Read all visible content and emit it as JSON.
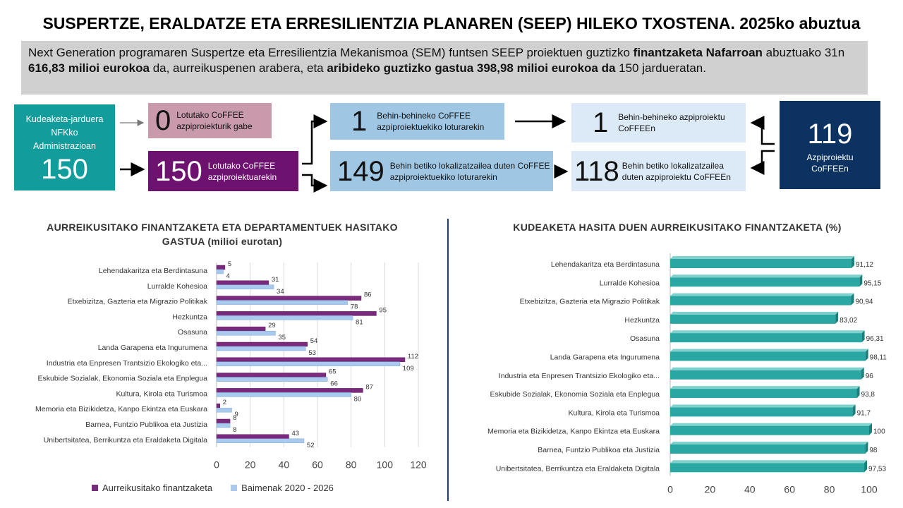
{
  "header": {
    "title": "SUSPERTZE, ERALDATZE ETA ERRESILIENTZIA PLANAREN (SEEP) HILEKO TXOSTENA. 2025ko abuztua"
  },
  "summary": {
    "p1": "Next Generation programaren Suspertze eta Erresilientzia Mekanismoa (SEM) funtsen SEEP proiektuen guztizko ",
    "b1": "finantzaketa Nafarroan",
    "p2": " abuztuako 31n ",
    "b2": "616,83 milioi eurokoa",
    "p3": " da, aurreikuspenen arabera, eta ",
    "b3": "aribideko guztizko gastua 398,98 milioi eurokoa da",
    "p4": " 150 jardueratan."
  },
  "flow": {
    "admin": {
      "label": "Kudeaketa-jarduera NFKko Administrazioan",
      "value": "150"
    },
    "unlinked": {
      "value": "0",
      "label": "Lotutako CoFFEE azpiproiekturik gabe"
    },
    "linked": {
      "value": "150",
      "label": "Lotutako CoFFEE azpiproiektuarekin"
    },
    "temp_link": {
      "value": "1",
      "label": "Behin-behineko CoFFEE azpiproiektuekiko loturarekin"
    },
    "final_link": {
      "value": "149",
      "label": "Behin betiko lokalizatzailea duten CoFFEE azpiproiektuekiko loturarekin"
    },
    "temp_sub": {
      "value": "1",
      "label": "Behin-behineko azpiproiektu CoFFEEn"
    },
    "final_sub": {
      "value": "118",
      "label": "Behin betiko lokalizatzailea duten azpiproiektu CoFFEEn"
    },
    "total": {
      "value": "119",
      "label": "Azpiproiektu CoFFEEn"
    }
  },
  "colors": {
    "teal": "#139c9c",
    "mauve": "#c89aab",
    "purple": "#6e1270",
    "light_blue": "#9fc7e4",
    "pale_blue": "#dce9f6",
    "navy": "#0b3260",
    "series_financing": "#7a2a7c",
    "series_permits": "#a9c9ee",
    "pct_bar": "#2aa7a2"
  },
  "chart_data": [
    {
      "type": "bar",
      "orientation": "horizontal",
      "title": "AURREIKUSITAKO FINANTZAKETA ETA DEPARTAMENTUEK HASITAKO GASTUA (milioi eurotan)",
      "categories": [
        "Lehendakaritza eta Berdintasuna",
        "Lurralde Kohesioa",
        "Etxebizitza, Gazteria eta Migrazio Politikak",
        "Hezkuntza",
        "Osasuna",
        "Landa Garapena eta Ingurumena",
        "Industria eta Enpresen Trantsizio Ekologiko eta...",
        "Eskubide Sozialak, Ekonomia Soziala eta Enplegua",
        "Kultura, Kirola eta Turismoa",
        "Memoria eta Bizikidetza, Kanpo Ekintza eta Euskara",
        "Barnea, Funtzio Publikoa eta Justizia",
        "Unibertsitatea, Berrikuntza eta Eraldaketa Digitala"
      ],
      "series": [
        {
          "name": "Aurreikusitako finantzaketa",
          "values": [
            5,
            31,
            86,
            95,
            29,
            54,
            112,
            65,
            87,
            2,
            8,
            43
          ]
        },
        {
          "name": "Baimenak 2020 - 2026",
          "values": [
            4,
            34,
            78,
            81,
            35,
            53,
            109,
            66,
            80,
            9,
            8,
            52
          ]
        }
      ],
      "xlim": [
        0,
        120
      ],
      "ticks": [
        "0",
        "20",
        "40",
        "60",
        "80",
        "100",
        "120"
      ],
      "grid": true,
      "legend": "bottom"
    },
    {
      "type": "bar",
      "orientation": "horizontal",
      "title": "KUDEAKETA HASITA DUEN AURREIKUSITAKO FINANTZAKETA (%)",
      "categories": [
        "Lehendakaritza eta Berdintasuna",
        "Lurralde Kohesioa",
        "Etxebizitza, Gazteria eta Migrazio Politikak",
        "Hezkuntza",
        "Osasuna",
        "Landa Garapena eta Ingurumena",
        "Industria eta Enpresen Trantsizio Ekologiko eta...",
        "Eskubide Sozialak, Ekonomia Soziala eta Enplegua",
        "Kultura, Kirola eta Turismoa",
        "Memoria eta Bizikidetza, Kanpo Ekintza eta Euskara",
        "Barnea, Funtzio Publikoa eta Justizia",
        "Unibertsitatea, Berrikuntza eta Eraldaketa Digitala"
      ],
      "values": [
        91.12,
        95.15,
        90.94,
        83.02,
        96.31,
        98.11,
        96,
        93.8,
        91.7,
        100,
        98,
        97.53
      ],
      "labels": [
        "91,12",
        "95,15",
        "90,94",
        "83,02",
        "96,31",
        "98,11",
        "96",
        "93,8",
        "91,7",
        "100",
        "98",
        "97,53"
      ],
      "xlim": [
        0,
        100
      ],
      "ticks": [
        "0",
        "20",
        "40",
        "60",
        "80",
        "100"
      ],
      "grid": false
    }
  ]
}
